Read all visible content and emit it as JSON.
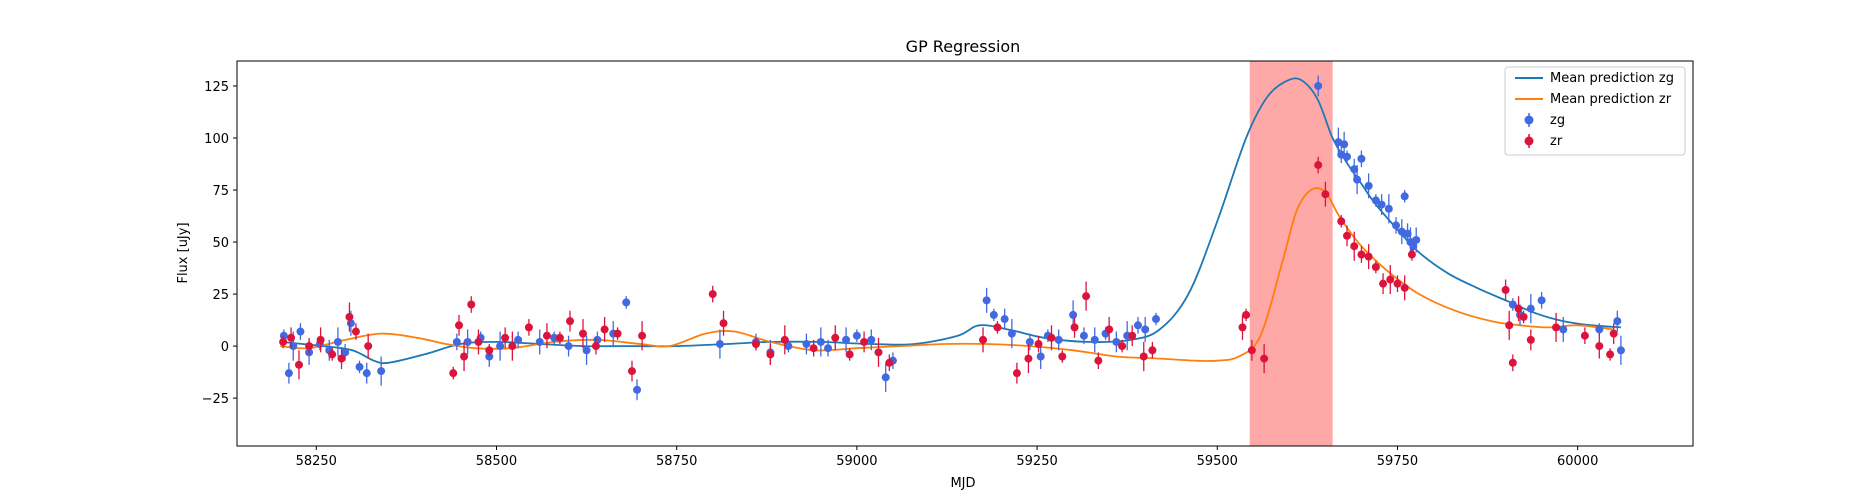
{
  "chart_data": {
    "type": "scatter",
    "title": "GP Regression",
    "xlabel": "MJD",
    "ylabel": "Flux [uJy]",
    "xlim": [
      58140,
      60160
    ],
    "ylim": [
      -48,
      137
    ],
    "xticks": [
      58250,
      58500,
      58750,
      59000,
      59250,
      59500,
      59750,
      60000
    ],
    "yticks": [
      -25,
      0,
      25,
      50,
      75,
      100,
      125
    ],
    "grid": false,
    "legend_position": "top-right",
    "shaded_region": {
      "x0": 59545,
      "x1": 59660,
      "color": "#ff9999"
    },
    "colors": {
      "zg_line": "#1f77b4",
      "zr_line": "#ff7f0e",
      "zg_points": "#4169e1",
      "zr_points": "#dc143c"
    },
    "series": [
      {
        "name": "Mean prediction zg",
        "kind": "line",
        "x": [
          58200,
          58260,
          58300,
          58330,
          58350,
          58400,
          58450,
          58500,
          58560,
          58620,
          58680,
          58750,
          58820,
          58880,
          58950,
          59020,
          59080,
          59140,
          59170,
          59210,
          59260,
          59320,
          59380,
          59420,
          59460,
          59500,
          59540,
          59570,
          59600,
          59620,
          59640,
          59660,
          59680,
          59700,
          59720,
          59750,
          59780,
          59820,
          59860,
          59900,
          59940,
          59980,
          60020,
          60060
        ],
        "y": [
          2,
          0,
          -2,
          -7,
          -8,
          -4,
          1,
          2,
          1,
          0,
          0,
          0,
          1,
          2,
          2,
          1,
          1,
          5,
          10,
          8,
          4,
          2,
          3,
          8,
          25,
          60,
          100,
          120,
          128,
          127,
          118,
          100,
          88,
          78,
          68,
          56,
          45,
          35,
          28,
          22,
          16,
          12,
          10,
          9
        ]
      },
      {
        "name": "Mean prediction zr",
        "kind": "line",
        "x": [
          58200,
          58240,
          58290,
          58340,
          58390,
          58430,
          58470,
          58520,
          58580,
          58640,
          58700,
          58740,
          58790,
          58830,
          58880,
          58940,
          59000,
          59060,
          59120,
          59180,
          59240,
          59300,
          59360,
          59420,
          59470,
          59500,
          59530,
          59560,
          59590,
          59610,
          59630,
          59650,
          59670,
          59700,
          59740,
          59780,
          59830,
          59880,
          59920,
          59960,
          60000,
          60050
        ],
        "y": [
          0,
          -1,
          3,
          6,
          4,
          1,
          -1,
          -1,
          2,
          3,
          1,
          0,
          6,
          7,
          2,
          -2,
          -1,
          0,
          1,
          1,
          0,
          -2,
          -5,
          -6,
          -7,
          -7,
          -5,
          5,
          40,
          65,
          75,
          74,
          62,
          48,
          35,
          25,
          17,
          12,
          10,
          9,
          10,
          8
        ]
      },
      {
        "name": "zg",
        "kind": "points",
        "x": [
          58205,
          58212,
          58218,
          58228,
          58240,
          58255,
          58268,
          58280,
          58290,
          58298,
          58310,
          58320,
          58340,
          58445,
          58460,
          58478,
          58490,
          58505,
          58530,
          58560,
          58580,
          58600,
          58625,
          58640,
          58662,
          58680,
          58695,
          58810,
          58860,
          58880,
          58905,
          58930,
          58950,
          58960,
          58985,
          59000,
          59020,
          59040,
          59050,
          59180,
          59190,
          59205,
          59215,
          59240,
          59255,
          59265,
          59280,
          59300,
          59315,
          59330,
          59345,
          59360,
          59375,
          59390,
          59400,
          59415,
          59640,
          59668,
          59672,
          59676,
          59680,
          59690,
          59694,
          59700,
          59710,
          59720,
          59728,
          59738,
          59748,
          59756,
          59760,
          59764,
          59768,
          59772,
          59776,
          59910,
          59920,
          59935,
          59950,
          59980,
          60030,
          60055,
          60060
        ],
        "y": [
          5,
          -13,
          0,
          7,
          -3,
          1,
          -2,
          2,
          -3,
          11,
          -10,
          -13,
          -12,
          2,
          2,
          4,
          -5,
          0,
          3,
          2,
          4,
          0,
          -2,
          3,
          6,
          21,
          -21,
          1,
          2,
          -3,
          0,
          1,
          2,
          -1,
          3,
          5,
          3,
          -15,
          -7,
          22,
          15,
          13,
          6,
          2,
          -5,
          5,
          3,
          15,
          5,
          3,
          6,
          2,
          5,
          10,
          8,
          13,
          125,
          98,
          92,
          97,
          91,
          85,
          80,
          90,
          77,
          70,
          68,
          66,
          58,
          55,
          72,
          54,
          50,
          48,
          51,
          20,
          15,
          18,
          22,
          8,
          8,
          12,
          -2
        ]
      },
      {
        "name": "zr",
        "kind": "points",
        "x": [
          58204,
          58215,
          58226,
          58240,
          58256,
          58272,
          58285,
          58296,
          58305,
          58322,
          58440,
          58448,
          58455,
          58465,
          58475,
          58490,
          58512,
          58522,
          58545,
          58570,
          58588,
          58602,
          58620,
          58638,
          58650,
          58668,
          58688,
          58702,
          58800,
          58815,
          58860,
          58880,
          58900,
          58940,
          58970,
          58990,
          59010,
          59030,
          59045,
          59175,
          59195,
          59222,
          59238,
          59252,
          59270,
          59285,
          59302,
          59318,
          59335,
          59350,
          59368,
          59382,
          59398,
          59410,
          59535,
          59540,
          59548,
          59565,
          59640,
          59650,
          59672,
          59680,
          59690,
          59700,
          59710,
          59720,
          59730,
          59740,
          59750,
          59760,
          59770,
          59900,
          59905,
          59910,
          59918,
          59925,
          59935,
          59970,
          60010,
          60030,
          60045,
          60050
        ],
        "y": [
          2,
          4,
          -9,
          0,
          3,
          -4,
          -6,
          14,
          7,
          0,
          -13,
          10,
          -5,
          20,
          2,
          -2,
          4,
          0,
          9,
          5,
          4,
          12,
          6,
          0,
          8,
          6,
          -12,
          5,
          25,
          11,
          1,
          -4,
          3,
          -1,
          4,
          -4,
          2,
          -3,
          -8,
          3,
          9,
          -13,
          -6,
          1,
          4,
          -5,
          9,
          24,
          -7,
          8,
          0,
          5,
          -5,
          -2,
          9,
          15,
          -2,
          -6,
          87,
          73,
          60,
          53,
          48,
          44,
          43,
          38,
          30,
          32,
          30,
          28,
          44,
          27,
          10,
          -8,
          18,
          14,
          3,
          9,
          5,
          0,
          -4,
          6
        ]
      }
    ]
  }
}
